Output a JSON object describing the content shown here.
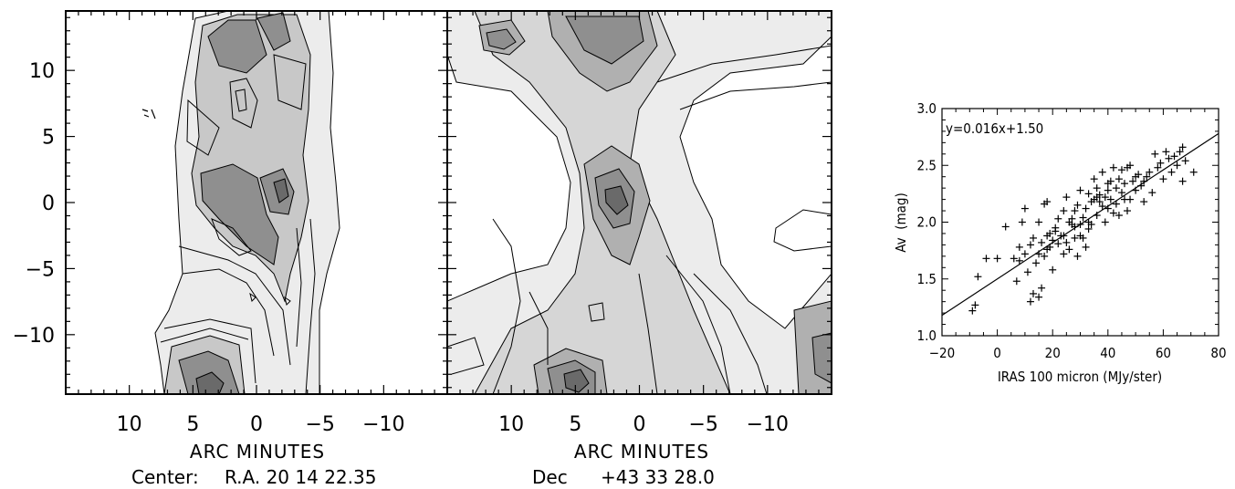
{
  "left_maps": {
    "y_ticks": [
      "10",
      "5",
      "0",
      "−5",
      "−10"
    ],
    "y_tick_values": [
      10,
      5,
      0,
      -5,
      -10
    ],
    "x_ticks": [
      "10",
      "5",
      "0",
      "−5",
      "−10"
    ],
    "x_tick_values": [
      10,
      5,
      0,
      -5,
      -10
    ],
    "panel1_xlabel": "ARC MINUTES",
    "panel2_xlabel": "ARC MINUTES",
    "center_label": "Center:",
    "ra_label": "R.A. 20 14 22.35",
    "dec_label": "Dec",
    "dec_value": "+43 33 28.0",
    "xlim": [
      15,
      -15
    ],
    "ylim": [
      -14.5,
      14.5
    ]
  },
  "chart_data": {
    "type": "scatter",
    "title": "",
    "annotation": "y=0.016x+1.50",
    "xlabel": "IRAS 100 micron (MJy/ster)",
    "ylabel": "Av  (mag)",
    "xlim": [
      -20,
      80
    ],
    "ylim": [
      1.0,
      3.0
    ],
    "x_ticks": [
      -20,
      0,
      20,
      40,
      60,
      80
    ],
    "x_tick_labels": [
      "−20",
      "0",
      "20",
      "40",
      "60",
      "80"
    ],
    "y_ticks": [
      1.0,
      1.5,
      2.0,
      2.5,
      3.0
    ],
    "y_tick_labels": [
      "1.0",
      "1.5",
      "2.0",
      "2.5",
      "3.0"
    ],
    "fit": {
      "slope": 0.016,
      "intercept": 1.5
    },
    "marker": "+",
    "points": [
      [
        -9,
        1.22
      ],
      [
        -8,
        1.27
      ],
      [
        -7,
        1.52
      ],
      [
        -4,
        1.68
      ],
      [
        0,
        1.68
      ],
      [
        3,
        1.96
      ],
      [
        6,
        1.68
      ],
      [
        7,
        1.48
      ],
      [
        8,
        1.66
      ],
      [
        8,
        1.78
      ],
      [
        9,
        2.0
      ],
      [
        10,
        2.12
      ],
      [
        10,
        1.72
      ],
      [
        11,
        1.56
      ],
      [
        12,
        1.3
      ],
      [
        12,
        1.8
      ],
      [
        13,
        1.86
      ],
      [
        13,
        1.37
      ],
      [
        14,
        1.64
      ],
      [
        15,
        1.34
      ],
      [
        15,
        2.0
      ],
      [
        16,
        1.82
      ],
      [
        16,
        1.42
      ],
      [
        17,
        1.7
      ],
      [
        17,
        2.16
      ],
      [
        18,
        2.18
      ],
      [
        18,
        1.88
      ],
      [
        19,
        1.9
      ],
      [
        19,
        1.78
      ],
      [
        20,
        1.58
      ],
      [
        20,
        1.84
      ],
      [
        21,
        1.95
      ],
      [
        22,
        1.81
      ],
      [
        22,
        2.03
      ],
      [
        23,
        1.88
      ],
      [
        24,
        1.72
      ],
      [
        24,
        2.1
      ],
      [
        25,
        1.82
      ],
      [
        25,
        2.22
      ],
      [
        26,
        1.76
      ],
      [
        27,
        1.98
      ],
      [
        27,
        2.03
      ],
      [
        28,
        1.86
      ],
      [
        28,
        2.1
      ],
      [
        29,
        1.7
      ],
      [
        29,
        2.15
      ],
      [
        30,
        1.98
      ],
      [
        30,
        2.28
      ],
      [
        31,
        2.04
      ],
      [
        31,
        1.86
      ],
      [
        32,
        2.12
      ],
      [
        32,
        1.78
      ],
      [
        33,
        2.0
      ],
      [
        33,
        2.25
      ],
      [
        34,
        2.18
      ],
      [
        34,
        1.98
      ],
      [
        35,
        2.2
      ],
      [
        35,
        2.38
      ],
      [
        36,
        2.06
      ],
      [
        36,
        2.3
      ],
      [
        37,
        2.24
      ],
      [
        38,
        2.14
      ],
      [
        38,
        2.44
      ],
      [
        39,
        2.22
      ],
      [
        39,
        2.0
      ],
      [
        40,
        2.28
      ],
      [
        40,
        2.12
      ],
      [
        41,
        2.36
      ],
      [
        41,
        2.2
      ],
      [
        42,
        2.08
      ],
      [
        42,
        2.48
      ],
      [
        43,
        2.3
      ],
      [
        43,
        2.16
      ],
      [
        44,
        2.38
      ],
      [
        45,
        2.26
      ],
      [
        45,
        2.46
      ],
      [
        46,
        2.34
      ],
      [
        47,
        2.48
      ],
      [
        47,
        2.1
      ],
      [
        48,
        2.2
      ],
      [
        48,
        2.5
      ],
      [
        49,
        2.36
      ],
      [
        50,
        2.28
      ],
      [
        51,
        2.42
      ],
      [
        52,
        2.32
      ],
      [
        53,
        2.18
      ],
      [
        54,
        2.4
      ],
      [
        55,
        2.44
      ],
      [
        56,
        2.26
      ],
      [
        57,
        2.6
      ],
      [
        58,
        2.48
      ],
      [
        59,
        2.52
      ],
      [
        60,
        2.38
      ],
      [
        61,
        2.62
      ],
      [
        62,
        2.56
      ],
      [
        63,
        2.44
      ],
      [
        64,
        2.58
      ],
      [
        65,
        2.5
      ],
      [
        66,
        2.62
      ],
      [
        67,
        2.66
      ],
      [
        67,
        2.36
      ],
      [
        68,
        2.54
      ],
      [
        71,
        2.44
      ],
      [
        30,
        1.88
      ],
      [
        36,
        2.22
      ],
      [
        44,
        2.06
      ],
      [
        50,
        2.4
      ],
      [
        26,
        2.0
      ],
      [
        21,
        1.92
      ],
      [
        15,
        1.72
      ],
      [
        37,
        2.18
      ],
      [
        46,
        2.2
      ],
      [
        53,
        2.36
      ],
      [
        33,
        1.94
      ],
      [
        40,
        2.34
      ],
      [
        28,
        1.96
      ],
      [
        18,
        1.76
      ],
      [
        24,
        1.88
      ]
    ]
  },
  "colors": {
    "ink": "#000000",
    "background": "#ffffff",
    "gray_light": "#ececec",
    "gray_mid": "#c8c8c8",
    "gray_dark": "#8f8f8f",
    "gray_darkest": "#6a6a6a"
  }
}
